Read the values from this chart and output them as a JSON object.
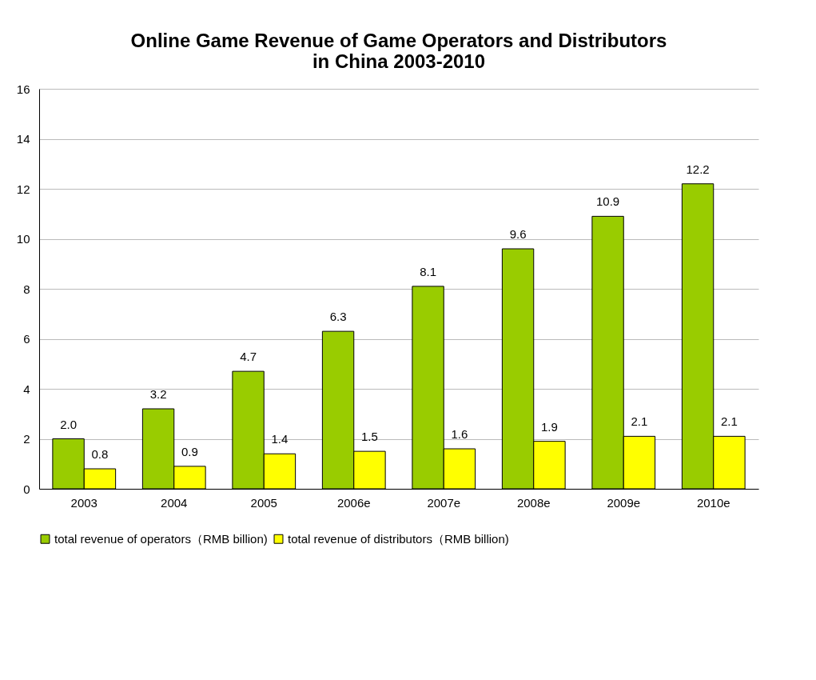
{
  "chart_data": {
    "type": "bar",
    "title": "Online Game Revenue of Game Operators and Distributors in China 2003-2010",
    "categories": [
      "2003",
      "2004",
      "2005",
      "2006e",
      "2007e",
      "2008e",
      "2009e",
      "2010e"
    ],
    "series": [
      {
        "name": "total revenue of operators（RMB billion)",
        "color": "#99cc00",
        "values": [
          2.0,
          3.2,
          4.7,
          6.3,
          8.1,
          9.6,
          10.9,
          12.2
        ],
        "value_labels": [
          "2.0",
          "3.2",
          "4.7",
          "6.3",
          "8.1",
          "9.6",
          "10.9",
          "12.2"
        ]
      },
      {
        "name": "total revenue of distributors（RMB billion)",
        "color": "#ffff00",
        "values": [
          0.8,
          0.9,
          1.4,
          1.5,
          1.6,
          1.9,
          2.1,
          2.1
        ],
        "value_labels": [
          "0.8",
          "0.9",
          "1.4",
          "1.5",
          "1.6",
          "1.9",
          "2.1",
          "2.1"
        ]
      }
    ],
    "ylim": [
      0,
      16
    ],
    "yticks": [
      0,
      2,
      4,
      6,
      8,
      10,
      12,
      14,
      16
    ],
    "grid": "y",
    "legend": "bottom"
  }
}
